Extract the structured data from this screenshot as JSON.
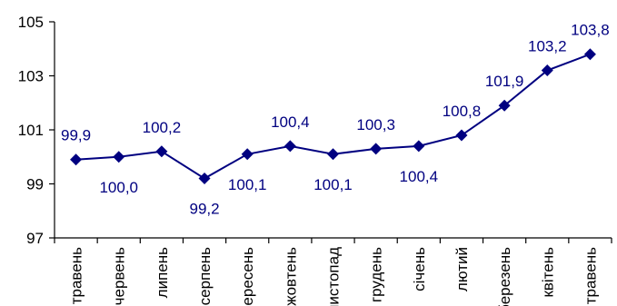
{
  "chart_data": {
    "type": "line",
    "title": "",
    "xlabel": "",
    "ylabel": "",
    "ylim": [
      97,
      105
    ],
    "yticks": [
      97,
      99,
      101,
      103,
      105
    ],
    "grid": false,
    "legend": "none",
    "categories": [
      "травень",
      "червень",
      "липень",
      "серпень",
      "вересень",
      "жовтень",
      "листопад",
      "грудень",
      "січень",
      "лютий",
      "березень",
      "квітень",
      "травень"
    ],
    "series": [
      {
        "values": [
          99.9,
          100.0,
          100.2,
          99.2,
          100.1,
          100.4,
          100.1,
          100.3,
          100.4,
          100.8,
          101.9,
          103.2,
          103.8
        ],
        "data_labels": [
          "99,9",
          "100,0",
          "100,2",
          "99,2",
          "100,1",
          "100,4",
          "100,1",
          "100,3",
          "100,4",
          "100,8",
          "101,9",
          "103,2",
          "103,8"
        ],
        "color": "#000080",
        "marker": "diamond"
      }
    ],
    "axis_color": "#000000"
  }
}
